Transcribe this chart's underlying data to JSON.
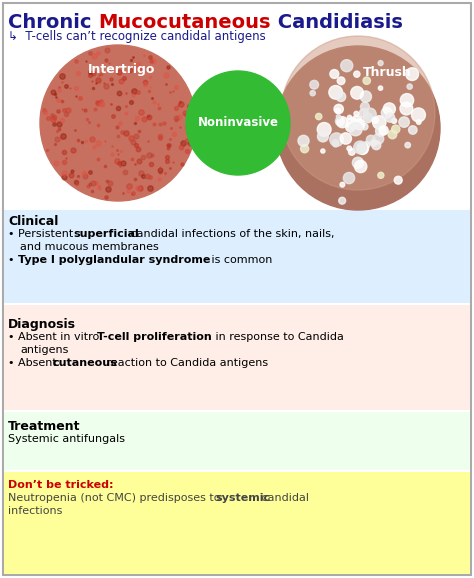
{
  "title_chronic": "Chronic ",
  "title_muco": "Mucocutaneous",
  "title_candi": " Candidiasis",
  "title_color_chronic": "#1a1a8c",
  "title_color_muco": "#cc0000",
  "title_color_candi": "#1a1a8c",
  "subtitle": "↳  T-cells can’t recognize candidal antigens",
  "subtitle_color": "#1a1a8c",
  "circle1_label": "Intertrigo",
  "circle2_label": "Noninvasive",
  "circle3_label": "Thrush",
  "circle1_color": "#c87060",
  "circle2_color": "#33bb33",
  "circle3_color": "#bbbbbb",
  "bg_color": "#ffffff",
  "clinical_bg": "#ddeeff",
  "diagnosis_bg": "#ffeee8",
  "treatment_bg": "#eeffee",
  "trick_bg": "#ffff99",
  "section_clinical_title": "Clinical",
  "section_diagnosis_title": "Diagnosis",
  "section_treatment_title": "Treatment",
  "section_treatment_text": "Systemic antifungals",
  "trick_title": "Don’t be tricked:",
  "trick_title_color": "#cc0000",
  "trick_text_color": "#444444",
  "title_fontsize": 14,
  "section_title_fontsize": 9,
  "body_fontsize": 8
}
